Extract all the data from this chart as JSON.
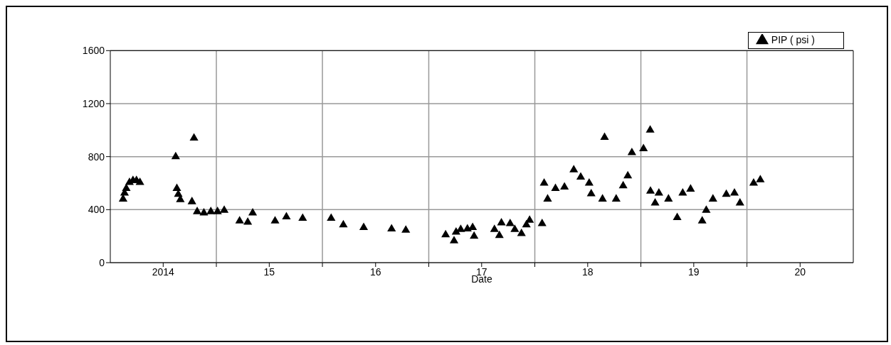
{
  "chart_data": {
    "type": "scatter",
    "xlabel": "Date",
    "legend": "top right",
    "grid": true,
    "marker": "triangle",
    "xlim": [
      "2014-01-01",
      "2021-01-01"
    ],
    "xticks": [
      {
        "value": "2014-07-02",
        "label": "2014"
      },
      {
        "value": "2015-01-01",
        "label": null
      },
      {
        "value": "2015-07-02",
        "label": "15"
      },
      {
        "value": "2016-01-01",
        "label": null
      },
      {
        "value": "2016-07-02",
        "label": "16"
      },
      {
        "value": "2017-01-01",
        "label": null
      },
      {
        "value": "2017-07-02",
        "label": "17"
      },
      {
        "value": "2018-01-01",
        "label": null
      },
      {
        "value": "2018-07-02",
        "label": "18"
      },
      {
        "value": "2019-01-01",
        "label": null
      },
      {
        "value": "2019-07-02",
        "label": "19"
      },
      {
        "value": "2020-01-01",
        "label": null
      },
      {
        "value": "2020-07-02",
        "label": "20"
      }
    ],
    "ylim": [
      0,
      1600
    ],
    "yticks": [
      0,
      400,
      800,
      1200,
      1600
    ],
    "series": [
      {
        "name": "PIP ( psi )",
        "color": "#000000",
        "x": [
          "2014-02-14",
          "2014-02-19",
          "2014-02-25",
          "2014-03-08",
          "2014-03-20",
          "2014-04-01",
          "2014-04-13",
          "2014-08-14",
          "2014-08-18",
          "2014-08-23",
          "2014-08-30",
          "2014-10-16",
          "2014-10-09",
          "2014-10-27",
          "2014-11-19",
          "2014-12-13",
          "2015-01-05",
          "2015-01-28",
          "2015-03-22",
          "2015-04-19",
          "2015-05-06",
          "2015-07-22",
          "2015-08-30",
          "2015-10-25",
          "2016-01-31",
          "2016-03-13",
          "2016-05-22",
          "2016-08-26",
          "2016-10-14",
          "2017-02-28",
          "2017-03-29",
          "2017-04-05",
          "2017-04-21",
          "2017-05-14",
          "2017-06-01",
          "2017-06-06",
          "2017-08-15",
          "2017-09-01",
          "2017-09-08",
          "2017-10-08",
          "2017-10-24",
          "2017-11-16",
          "2017-12-03",
          "2017-12-14",
          "2018-01-26",
          "2018-02-02",
          "2018-02-14",
          "2018-03-13",
          "2018-04-13",
          "2018-05-15",
          "2018-06-08",
          "2018-07-07",
          "2018-07-14",
          "2018-08-22",
          "2018-10-08",
          "2018-08-29",
          "2018-11-01",
          "2018-11-17",
          "2018-12-01",
          "2019-01-10",
          "2019-02-02",
          "2019-02-03",
          "2019-03-04",
          "2019-02-19",
          "2019-04-06",
          "2019-05-06",
          "2019-05-25",
          "2019-06-21",
          "2019-07-31",
          "2019-08-14",
          "2019-09-06",
          "2019-10-22",
          "2019-11-19",
          "2019-12-08",
          "2020-01-24",
          "2020-02-16"
        ],
        "values": [
          480,
          525,
          560,
          605,
          620,
          620,
          605,
          800,
          560,
          515,
          475,
          940,
          460,
          385,
          375,
          385,
          385,
          395,
          315,
          305,
          375,
          315,
          345,
          335,
          335,
          285,
          265,
          255,
          245,
          210,
          165,
          230,
          250,
          255,
          265,
          200,
          250,
          205,
          300,
          295,
          250,
          220,
          285,
          320,
          295,
          600,
          480,
          560,
          570,
          700,
          645,
          600,
          520,
          480,
          480,
          945,
          580,
          655,
          830,
          860,
          1000,
          540,
          525,
          450,
          480,
          340,
          525,
          555,
          315,
          395,
          480,
          515,
          525,
          450,
          600,
          625
        ]
      }
    ]
  }
}
